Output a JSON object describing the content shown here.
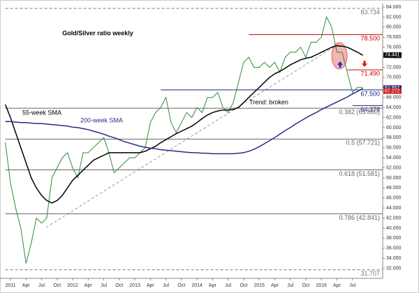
{
  "chart_data": {
    "type": "line",
    "title": "Gold/Silver ratio weekly",
    "annotation": "Trend: broken",
    "categories": [
      null,
      "2011",
      null,
      null,
      "Apr",
      null,
      null,
      "Jul",
      null,
      null,
      "Oct",
      null,
      null,
      "2012",
      null,
      null,
      "Apr",
      null,
      null,
      "Jul",
      null,
      null,
      "Oct",
      null,
      null,
      "2013",
      null,
      null,
      "Apr",
      null,
      null,
      "Jul",
      null,
      null,
      "Oct",
      null,
      null,
      "2014",
      null,
      null,
      "Apr",
      null,
      null,
      "Jul",
      null,
      null,
      "Oct",
      null,
      null,
      "2015",
      null,
      null,
      "Apr",
      null,
      null,
      "Jul",
      null,
      null,
      "Oct",
      null,
      null,
      "2016",
      null,
      null,
      "Apr",
      null,
      null,
      "Jul",
      null,
      null
    ],
    "series": [
      {
        "color": "#2e8b3a",
        "values": [
          57,
          49,
          44,
          40,
          33,
          37,
          42,
          41,
          42,
          50,
          52,
          54,
          55,
          52,
          50,
          55,
          55,
          56,
          57,
          58,
          55,
          51,
          52,
          53,
          54,
          54,
          55,
          56,
          61,
          63,
          64,
          66,
          61,
          59,
          61,
          63,
          62,
          64,
          63,
          66,
          66,
          67,
          64,
          63,
          65,
          69,
          73,
          74,
          72,
          72,
          73,
          72,
          73,
          71,
          74,
          75,
          75,
          76,
          74,
          77,
          77,
          78,
          82,
          80,
          75,
          75,
          71,
          67,
          68,
          68
        ]
      },
      {
        "name": "55-week SMA",
        "color": "#000000",
        "values": [
          64.6,
          62,
          59,
          56,
          53,
          50,
          48,
          46.5,
          45.5,
          45,
          45.5,
          46.5,
          48,
          49.5,
          50.5,
          51.5,
          52.5,
          53.5,
          54,
          54.5,
          55,
          55,
          55,
          55,
          55,
          55,
          55,
          55.3,
          55.8,
          56.3,
          57,
          57.6,
          58.2,
          58.8,
          59.3,
          59.8,
          60.3,
          61,
          61.8,
          62.5,
          63,
          63.3,
          63.5,
          63.5,
          63.6,
          64,
          65,
          66,
          67,
          68,
          69,
          70,
          70.7,
          71.2,
          71.8,
          72.5,
          73,
          73.5,
          73.8,
          74,
          74.5,
          75,
          75.5,
          76,
          76.3,
          76.2,
          76,
          75.5,
          75,
          74.4
        ]
      },
      {
        "name": "200-week SMA",
        "color": "#2a2a8c",
        "values": [
          61.2,
          61.2,
          61.1,
          61,
          61,
          60.9,
          60.8,
          60.8,
          60.7,
          60.6,
          60.5,
          60.4,
          60.3,
          60.1,
          60,
          59.8,
          59.6,
          59.3,
          59,
          58.7,
          58.3,
          58,
          57.6,
          57.2,
          56.9,
          56.6,
          56.3,
          56.1,
          55.9,
          55.8,
          55.6,
          55.5,
          55.4,
          55.3,
          55.2,
          55.1,
          55,
          55,
          54.9,
          54.9,
          54.8,
          54.8,
          54.8,
          54.8,
          54.8,
          54.9,
          55,
          55.3,
          55.7,
          56.2,
          56.8,
          57.4,
          58,
          58.7,
          59.4,
          60,
          60.7,
          61.3,
          61.9,
          62.5,
          63,
          63.6,
          64.1,
          64.6,
          65.1,
          65.6,
          66.1,
          66.7,
          67.2,
          67.8
        ]
      }
    ],
    "levels": [
      {
        "value": 83.734,
        "color": "#777777",
        "dash": true,
        "from": 0
      },
      {
        "value": 78.5,
        "label": "78.500",
        "color": "#cc0000",
        "dash": false,
        "from": 47
      },
      {
        "value": 71.49,
        "label": "71.490",
        "color": "#cc0000",
        "dash": false,
        "from": 66
      },
      {
        "value": 67.5,
        "label": "67.500",
        "color": "#1a237e",
        "dash": false,
        "from": 30
      },
      {
        "value": 64.378,
        "color": "#1a237e",
        "dash": false,
        "from": 67
      },
      {
        "value": 63.86,
        "label": "0.382 (63.860)",
        "color": "#666666",
        "dash": false,
        "from": 0
      },
      {
        "value": 57.721,
        "label": "0.5 (57.721)",
        "color": "#666666",
        "dash": false,
        "from": 0
      },
      {
        "value": 51.581,
        "label": "0.618 (51.581)",
        "color": "#666666",
        "dash": false,
        "from": 0
      },
      {
        "value": 42.841,
        "label": "0.786 (42.841)",
        "color": "#666666",
        "dash": false,
        "from": 0
      },
      {
        "value": 31.707,
        "color": "#777777",
        "dash": true,
        "from": 0
      }
    ],
    "tags": [
      {
        "value": 74.441,
        "color": "#111111"
      },
      {
        "value": 67.857,
        "color": "#2a2a8c"
      },
      {
        "value": 67.272,
        "color": "#cc2222"
      }
    ],
    "ylim": [
      30,
      84.7
    ],
    "yticks": [
      {
        "value": 32,
        "label": "32.000"
      },
      {
        "value": 34,
        "label": "34.000"
      },
      {
        "value": 36,
        "label": "36.000"
      },
      {
        "value": 38,
        "label": "38.000"
      },
      {
        "value": 40,
        "label": "40.000"
      },
      {
        "value": 42,
        "label": "42.000"
      },
      {
        "value": 44,
        "label": "44.000"
      },
      {
        "value": 46,
        "label": "46.000"
      },
      {
        "value": 48,
        "label": "48.000"
      },
      {
        "value": 50,
        "label": "50.000"
      },
      {
        "value": 52,
        "label": "52.000"
      },
      {
        "value": 54,
        "label": "54.000"
      },
      {
        "value": 56,
        "label": "56.000"
      },
      {
        "value": 58,
        "label": "58.000"
      },
      {
        "value": 60,
        "label": "60.000"
      },
      {
        "value": 62,
        "label": "62.000"
      },
      {
        "value": 64,
        "label": "64.000"
      },
      {
        "value": 66,
        "label": "66.000"
      },
      {
        "value": 68,
        "label": "68.000"
      },
      {
        "value": 70,
        "label": "70.000"
      },
      {
        "value": 72,
        "label": "72.000"
      },
      {
        "value": 74,
        "label": "74.000"
      },
      {
        "value": 76,
        "label": "76.000"
      },
      {
        "value": 78,
        "label": "78.000"
      },
      {
        "value": 80,
        "label": "80.000"
      },
      {
        "value": 82,
        "label": "82.000"
      },
      {
        "value": 84,
        "label": "84.000"
      }
    ],
    "grid": false
  }
}
